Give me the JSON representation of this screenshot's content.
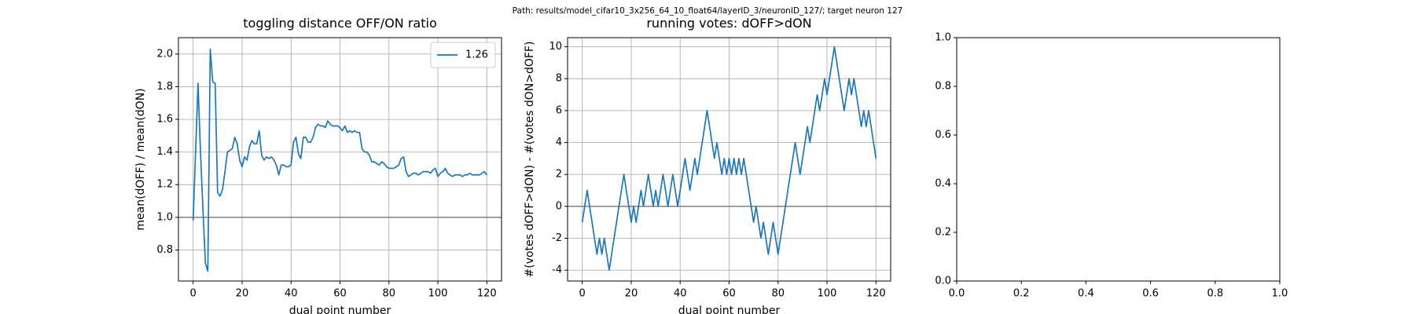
{
  "title": "Path: results/model_cifar10_3x256_64_10_float64/layerID_3/neuronID_127/; target neuron 127",
  "chart_data": [
    {
      "type": "line",
      "title": "toggling distance OFF/ON ratio",
      "xlabel": "dual point number",
      "ylabel": "mean(dOFF) / mean(dON)",
      "x": [
        0,
        1,
        2,
        3,
        4,
        5,
        6,
        7,
        8,
        9,
        10,
        11,
        12,
        13,
        14,
        15,
        16,
        17,
        18,
        19,
        20,
        21,
        22,
        23,
        24,
        25,
        26,
        27,
        28,
        29,
        30,
        31,
        32,
        33,
        34,
        35,
        36,
        37,
        38,
        39,
        40,
        41,
        42,
        43,
        44,
        45,
        46,
        47,
        48,
        49,
        50,
        51,
        52,
        53,
        54,
        55,
        56,
        57,
        58,
        59,
        60,
        61,
        62,
        63,
        64,
        65,
        66,
        67,
        68,
        69,
        70,
        71,
        72,
        73,
        74,
        75,
        76,
        77,
        78,
        79,
        80,
        81,
        82,
        83,
        84,
        85,
        86,
        87,
        88,
        89,
        90,
        91,
        92,
        93,
        94,
        95,
        96,
        97,
        98,
        99,
        100,
        101,
        102,
        103,
        104,
        105,
        106,
        107,
        108,
        109,
        110,
        111,
        112,
        113,
        114,
        115,
        116,
        117,
        118,
        119,
        120
      ],
      "series": [
        {
          "name": "1.26",
          "color": "#1f77b4",
          "values": [
            0.98,
            1.4,
            1.82,
            1.4,
            1.05,
            0.72,
            0.67,
            2.03,
            1.83,
            1.82,
            1.15,
            1.13,
            1.17,
            1.28,
            1.4,
            1.41,
            1.42,
            1.49,
            1.45,
            1.35,
            1.31,
            1.37,
            1.35,
            1.43,
            1.47,
            1.45,
            1.45,
            1.53,
            1.38,
            1.35,
            1.37,
            1.36,
            1.37,
            1.35,
            1.32,
            1.26,
            1.32,
            1.32,
            1.31,
            1.31,
            1.32,
            1.46,
            1.49,
            1.39,
            1.36,
            1.49,
            1.49,
            1.46,
            1.46,
            1.49,
            1.55,
            1.57,
            1.56,
            1.56,
            1.55,
            1.59,
            1.57,
            1.56,
            1.56,
            1.56,
            1.55,
            1.53,
            1.56,
            1.52,
            1.53,
            1.52,
            1.53,
            1.52,
            1.52,
            1.42,
            1.4,
            1.4,
            1.38,
            1.34,
            1.34,
            1.33,
            1.32,
            1.34,
            1.33,
            1.31,
            1.3,
            1.3,
            1.3,
            1.31,
            1.32,
            1.36,
            1.37,
            1.28,
            1.25,
            1.26,
            1.27,
            1.27,
            1.26,
            1.27,
            1.28,
            1.28,
            1.28,
            1.27,
            1.29,
            1.3,
            1.25,
            1.27,
            1.28,
            1.3,
            1.27,
            1.26,
            1.25,
            1.26,
            1.26,
            1.26,
            1.25,
            1.26,
            1.26,
            1.27,
            1.26,
            1.26,
            1.26,
            1.26,
            1.27,
            1.28,
            1.26
          ]
        }
      ],
      "reference_line": 1.0,
      "reference_color": "#808080",
      "xlim": [
        -6,
        126
      ],
      "xticks": [
        0,
        20,
        40,
        60,
        80,
        100,
        120
      ],
      "ylim": [
        0.61,
        2.1
      ],
      "yticks": [
        0.8,
        {
          "value": 1.0,
          "label": "1.0"
        },
        1.2,
        1.4,
        1.6,
        1.8,
        {
          "value": 2.0,
          "label": "2.0"
        }
      ],
      "grid": true,
      "legend": "upper right"
    },
    {
      "type": "line",
      "title": "running votes: dOFF>dON",
      "xlabel": "dual point number",
      "ylabel": "#(votes dOFF>dON)  -  #(votes dON>dOFF)",
      "x": [
        0,
        1,
        2,
        3,
        4,
        5,
        6,
        7,
        8,
        9,
        10,
        11,
        12,
        13,
        14,
        15,
        16,
        17,
        18,
        19,
        20,
        21,
        22,
        23,
        24,
        25,
        26,
        27,
        28,
        29,
        30,
        31,
        32,
        33,
        34,
        35,
        36,
        37,
        38,
        39,
        40,
        41,
        42,
        43,
        44,
        45,
        46,
        47,
        48,
        49,
        50,
        51,
        52,
        53,
        54,
        55,
        56,
        57,
        58,
        59,
        60,
        61,
        62,
        63,
        64,
        65,
        66,
        67,
        68,
        69,
        70,
        71,
        72,
        73,
        74,
        75,
        76,
        77,
        78,
        79,
        80,
        81,
        82,
        83,
        84,
        85,
        86,
        87,
        88,
        89,
        90,
        91,
        92,
        93,
        94,
        95,
        96,
        97,
        98,
        99,
        100,
        101,
        102,
        103,
        104,
        105,
        106,
        107,
        108,
        109,
        110,
        111,
        112,
        113,
        114,
        115,
        116,
        117,
        118,
        119,
        120
      ],
      "series": [
        {
          "color": "#1f77b4",
          "values": [
            -1,
            0,
            1,
            0,
            -1,
            -2,
            -3,
            -2,
            -3,
            -2,
            -3,
            -4,
            -3,
            -2,
            -1,
            0,
            1,
            2,
            1,
            0,
            -1,
            0,
            -1,
            0,
            1,
            0,
            1,
            2,
            1,
            0,
            1,
            0,
            1,
            2,
            1,
            0,
            1,
            2,
            1,
            0,
            1,
            2,
            3,
            2,
            1,
            2,
            3,
            2,
            3,
            4,
            5,
            6,
            5,
            4,
            3,
            4,
            3,
            2,
            3,
            2,
            3,
            2,
            3,
            2,
            3,
            2,
            3,
            2,
            1,
            0,
            -1,
            0,
            -1,
            -2,
            -1,
            -2,
            -3,
            -2,
            -1,
            -2,
            -3,
            -2,
            -1,
            0,
            1,
            2,
            3,
            4,
            3,
            2,
            3,
            4,
            5,
            4,
            5,
            6,
            7,
            6,
            7,
            8,
            7,
            8,
            9,
            10,
            9,
            8,
            7,
            6,
            7,
            8,
            7,
            8,
            7,
            6,
            5,
            6,
            5,
            6,
            5,
            4,
            3
          ]
        }
      ],
      "reference_line": 0,
      "reference_color": "#808080",
      "xlim": [
        -6,
        126
      ],
      "xticks": [
        0,
        20,
        40,
        60,
        80,
        100,
        120
      ],
      "ylim": [
        -4.68,
        10.57
      ],
      "yticks": [
        -4,
        -2,
        0,
        2,
        4,
        6,
        8,
        10
      ],
      "grid": true
    },
    {
      "type": "line",
      "xlim": [
        0,
        1
      ],
      "xticks": [
        {
          "value": 0,
          "label": "0.0"
        },
        0.2,
        0.4,
        0.6,
        0.8,
        {
          "value": 1,
          "label": "1.0"
        }
      ],
      "ylim": [
        0,
        1
      ],
      "yticks": [
        {
          "value": 0,
          "label": "0.0"
        },
        0.2,
        0.4,
        0.6,
        0.8,
        {
          "value": 1,
          "label": "1.0"
        }
      ],
      "grid": false
    }
  ]
}
